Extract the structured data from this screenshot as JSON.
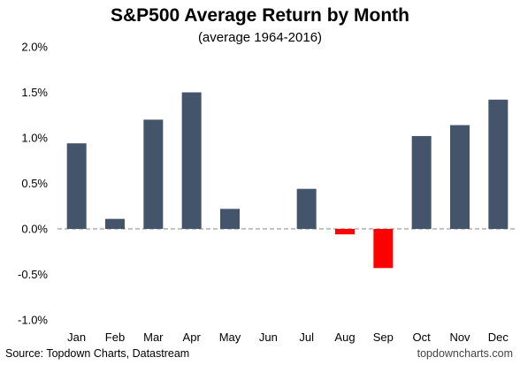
{
  "chart_data": {
    "type": "bar",
    "title": "S&P500 Average Return by Month",
    "subtitle": "(average 1964-2016)",
    "categories": [
      "Jan",
      "Feb",
      "Mar",
      "Apr",
      "May",
      "Jun",
      "Jul",
      "Aug",
      "Sep",
      "Oct",
      "Nov",
      "Dec"
    ],
    "values": [
      0.94,
      0.11,
      1.2,
      1.5,
      0.22,
      0.0,
      0.44,
      -0.06,
      -0.43,
      1.02,
      1.14,
      1.42
    ],
    "unit": "%",
    "ylim": [
      -1.0,
      2.0
    ],
    "yticks": [
      2.0,
      1.5,
      1.0,
      0.5,
      0.0,
      -0.5,
      -1.0
    ],
    "ytick_labels": [
      "2.0%",
      "1.5%",
      "1.0%",
      "0.5%",
      "0.0%",
      "-0.5%",
      "-1.0%"
    ],
    "grid": false,
    "zero_line": "dashed",
    "colors": {
      "positive": "#44546a",
      "negative": "#ff0000"
    }
  },
  "footer": {
    "source": "Source: Topdown Charts, Datastream",
    "brand": "topdowncharts.com"
  }
}
